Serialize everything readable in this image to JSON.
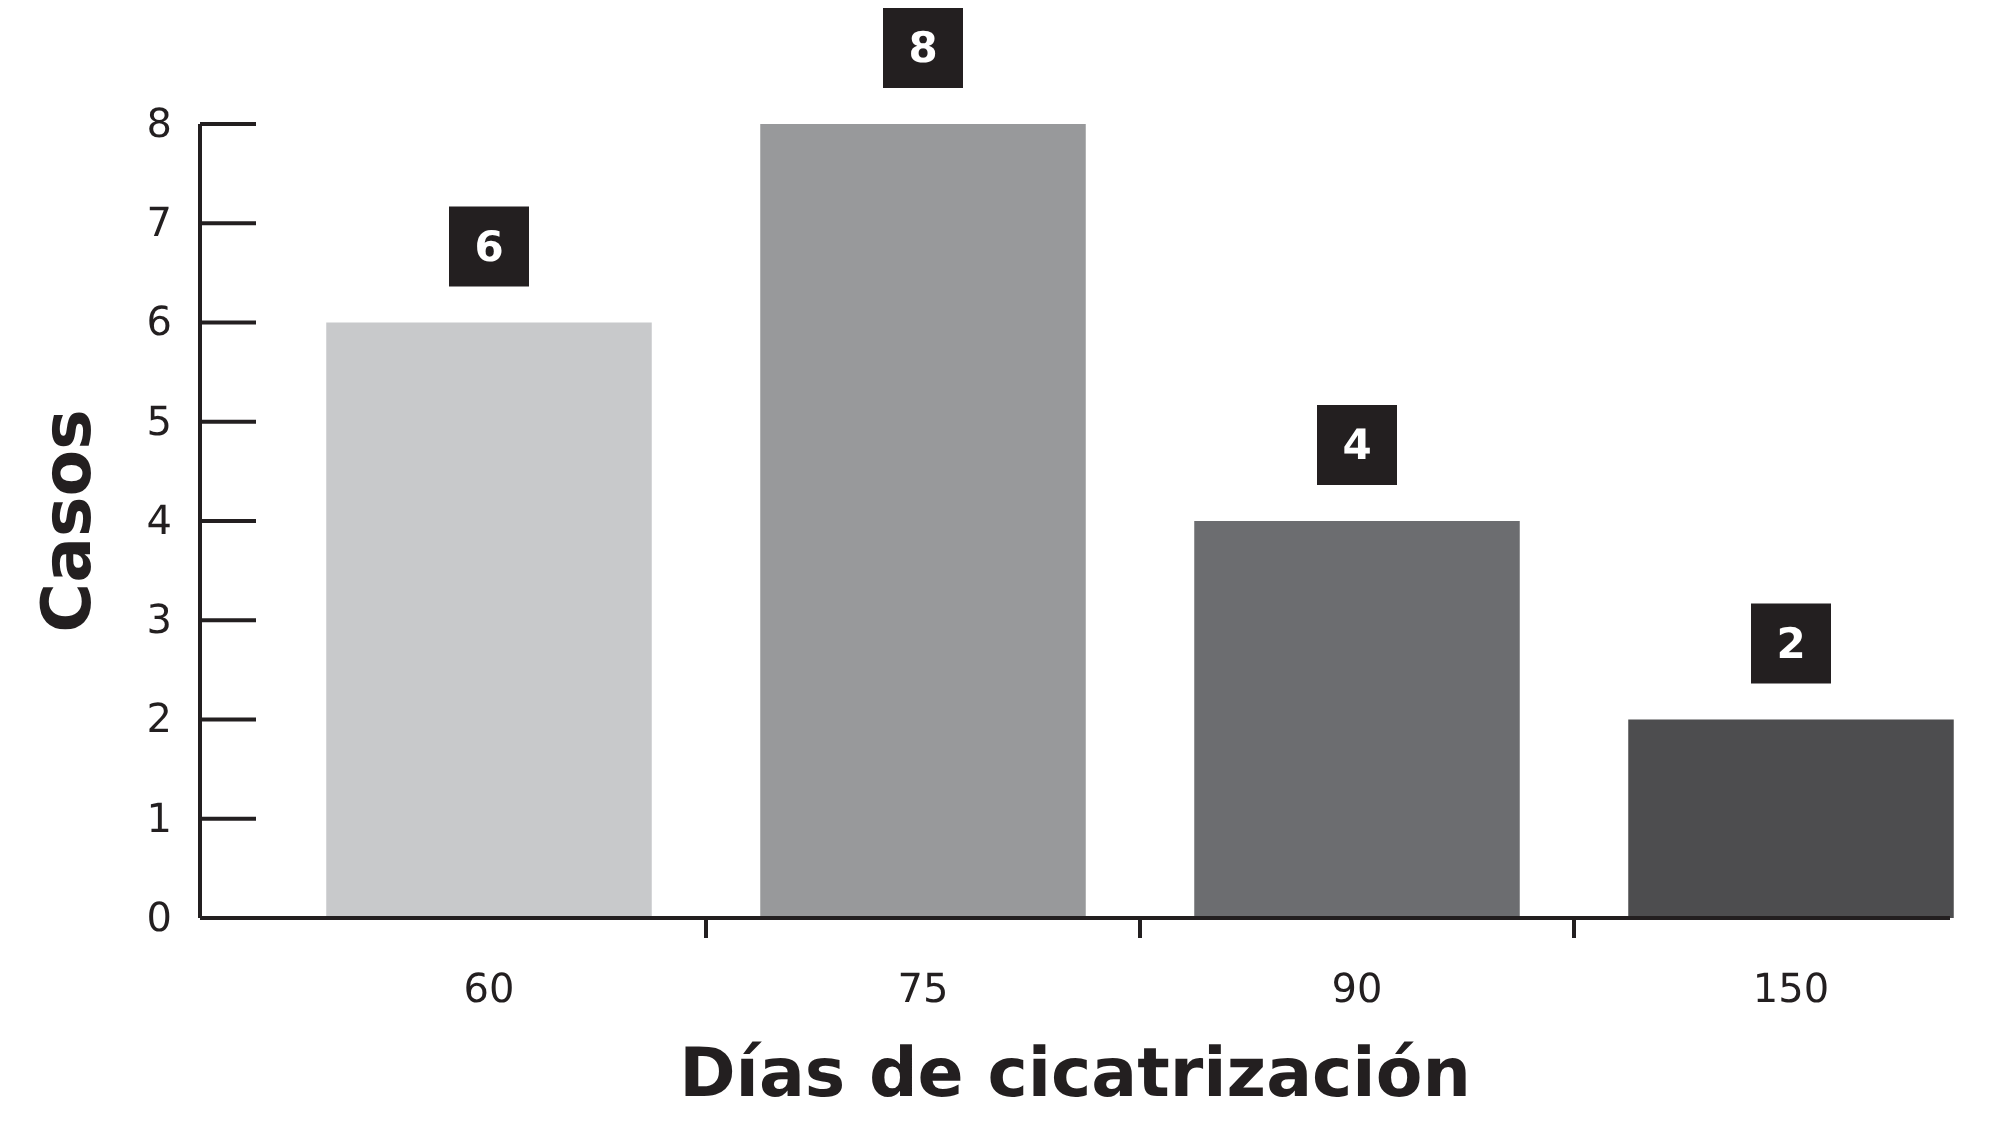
{
  "chart_data": {
    "type": "bar",
    "xlabel": "Días de cicatrización",
    "ylabel": "Casos",
    "categories": [
      "60",
      "75",
      "90",
      "150"
    ],
    "values": [
      6,
      8,
      4,
      2
    ],
    "colors": [
      "#c8c9cb",
      "#98999b",
      "#6c6d70",
      "#4d4d4f"
    ],
    "ylim": [
      0,
      8
    ],
    "yticks": [
      0,
      1,
      2,
      3,
      4,
      5,
      6,
      7,
      8
    ],
    "data_labels": true,
    "grid": false
  }
}
